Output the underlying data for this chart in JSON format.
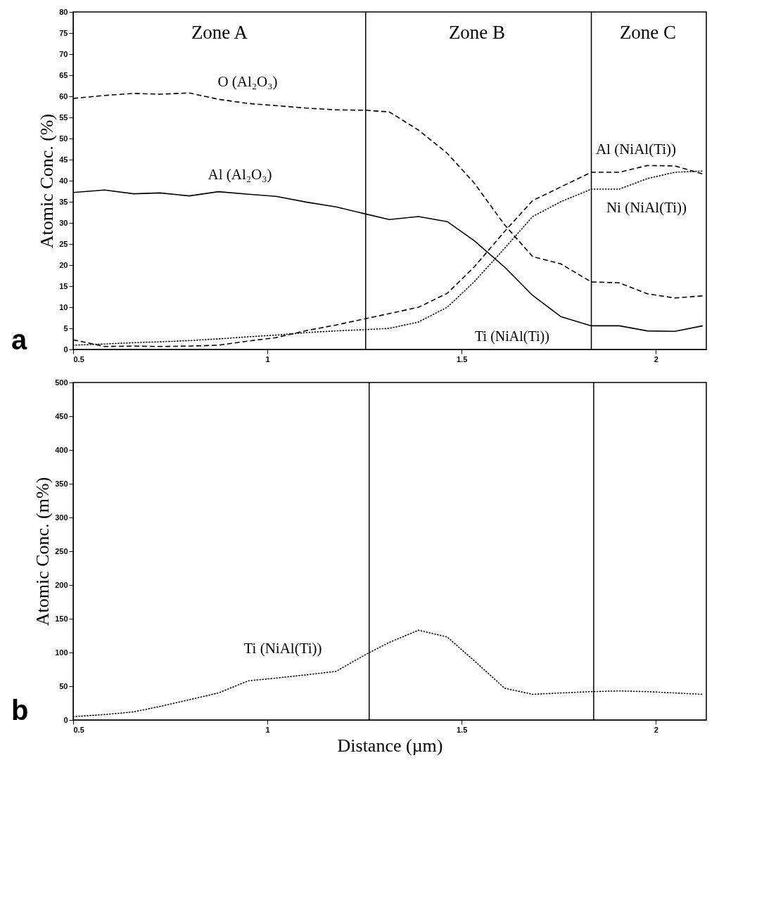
{
  "chart_data": [
    {
      "type": "line",
      "ylabel": "Atomic Conc. (%)",
      "xlim": [
        0.5,
        2.13
      ],
      "xticks": [
        0.5,
        1,
        1.5,
        2
      ],
      "ylim": [
        0,
        80
      ],
      "yticks": [
        0,
        5,
        10,
        15,
        20,
        25,
        30,
        35,
        40,
        45,
        50,
        55,
        60,
        65,
        70,
        75,
        80
      ],
      "x": [
        0.5,
        0.581,
        0.656,
        0.723,
        0.799,
        0.874,
        0.951,
        1.022,
        1.102,
        1.177,
        1.253,
        1.314,
        1.389,
        1.463,
        1.532,
        1.611,
        1.683,
        1.755,
        1.834,
        1.906,
        1.978,
        2.049,
        2.121
      ],
      "series": [
        {
          "name": "O (Al₂O₃)",
          "color": "#000000",
          "line_style": "dashed",
          "values": [
            59.5,
            60.2,
            60.7,
            60.5,
            60.8,
            59.3,
            58.3,
            57.8,
            57.2,
            56.8,
            56.7,
            56.3,
            52,
            46.5,
            39.5,
            29.5,
            22,
            20.3,
            16,
            15.8,
            13.2,
            12.2,
            12.7
          ]
        },
        {
          "name": "Al (Al₂O₃)",
          "color": "#000000",
          "line_style": "solid",
          "values": [
            37.2,
            37.8,
            36.9,
            37.1,
            36.4,
            37.4,
            36.8,
            36.3,
            34.9,
            33.8,
            32.1,
            30.8,
            31.5,
            30.3,
            25.8,
            19.5,
            12.8,
            7.8,
            5.6,
            5.6,
            4.4,
            4.3,
            5.6
          ]
        },
        {
          "name": "Al (NiAl(Ti))",
          "color": "#000000",
          "line_style": "dashed",
          "values": [
            2.3,
            0.7,
            0.8,
            0.7,
            0.8,
            1.0,
            2.0,
            2.8,
            4.5,
            5.8,
            7.3,
            8.5,
            10,
            13.3,
            19.5,
            28,
            35.3,
            38.5,
            42,
            42,
            43.6,
            43.5,
            41.6
          ]
        },
        {
          "name": "Ni (NiAl(Ti))",
          "color": "#000000",
          "line_style": "dotted",
          "values": [
            1,
            1.3,
            1.6,
            1.8,
            2.1,
            2.5,
            3.0,
            3.4,
            4.0,
            4.4,
            4.7,
            5.0,
            6.5,
            10,
            16,
            24,
            31.5,
            35,
            38,
            38,
            40.5,
            42,
            42.3
          ]
        }
      ],
      "ref_lines": [
        {
          "axis": "x",
          "value": 1.253
        },
        {
          "axis": "x",
          "value": 1.834
        }
      ],
      "annotations": [
        "Zone A",
        "Zone B",
        "Zone C",
        "Ti (NiAl(Ti))",
        "a"
      ]
    },
    {
      "type": "line",
      "xlabel": "Distance (µm)",
      "ylabel": "Atomic Conc. (m%)",
      "xlim": [
        0.5,
        2.13
      ],
      "xticks": [
        0.5,
        1,
        1.5,
        2
      ],
      "ylim": [
        0,
        500
      ],
      "yticks": [
        0,
        50,
        100,
        150,
        200,
        250,
        300,
        350,
        400,
        450,
        500
      ],
      "x": [
        0.5,
        0.581,
        0.656,
        0.723,
        0.799,
        0.874,
        0.951,
        1.022,
        1.102,
        1.177,
        1.253,
        1.314,
        1.389,
        1.463,
        1.532,
        1.611,
        1.683,
        1.755,
        1.834,
        1.906,
        1.978,
        2.049,
        2.121
      ],
      "series": [
        {
          "name": "Ti (NiAl(Ti))",
          "color": "#000000",
          "line_style": "dotted",
          "values": [
            5,
            8,
            12,
            20,
            30,
            40,
            58,
            62,
            67,
            72,
            97,
            115,
            133,
            123,
            88,
            47,
            38,
            40,
            42,
            43,
            42,
            40,
            38
          ]
        }
      ],
      "ref_lines": [
        {
          "axis": "x",
          "value": 1.262
        },
        {
          "axis": "x",
          "value": 1.84
        }
      ],
      "annotations": [
        "b"
      ]
    }
  ]
}
